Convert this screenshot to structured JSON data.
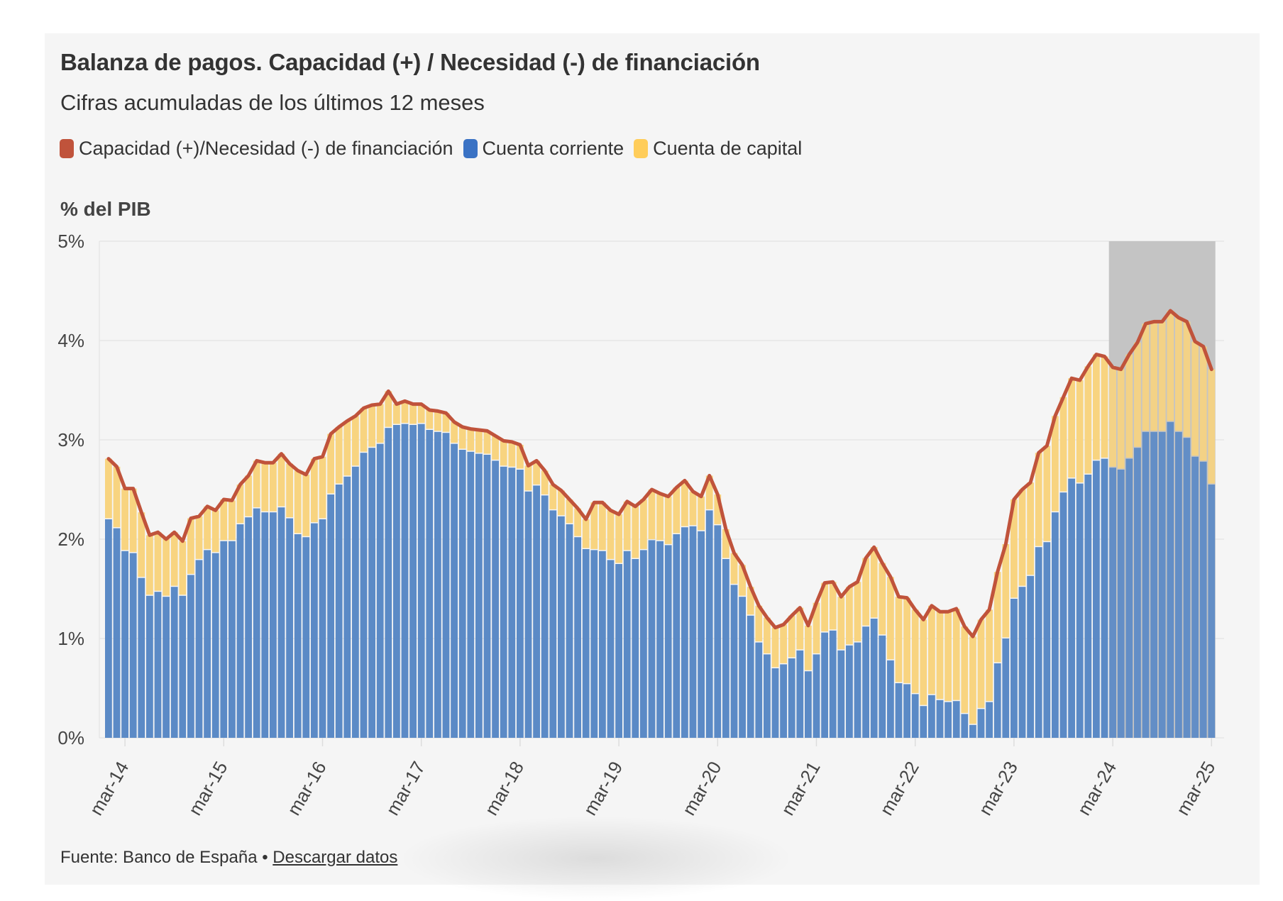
{
  "card": {
    "title": "Balanza de pagos. Capacidad (+) / Necesidad (-) de financiación",
    "subtitle": "Cifras acumuladas de los últimos 12 meses",
    "y_unit_label": "% del PIB",
    "footer": {
      "source_text": "Fuente: Banco de España • ",
      "download_link": "Descargar datos"
    }
  },
  "colors": {
    "total_line": "#c0533b",
    "current_account": "#5b8ac6",
    "capital_account": "#f8d480",
    "legend_current_account": "#3a72c4",
    "legend_capital_account": "#ffcd5a",
    "highlight_band": "#c4c4c4",
    "gridline": "#e6e6e6"
  },
  "chart_data": {
    "type": "bar",
    "stacked": true,
    "title": "Balanza de pagos. Capacidad (+) / Necesidad (-) de financiación",
    "subtitle": "Cifras acumuladas de los últimos 12 meses",
    "xlabel": "",
    "ylabel": "% del PIB",
    "ylim": [
      0,
      5
    ],
    "yticks": [
      0,
      1,
      2,
      3,
      4,
      5
    ],
    "ytick_labels": [
      "0%",
      "1%",
      "2%",
      "3%",
      "4%",
      "5%"
    ],
    "grid": true,
    "legend_position": "top-left",
    "start_month": "ene-14",
    "end_month": "mar-25",
    "xtick_labels": [
      "mar-14",
      "mar-15",
      "mar-16",
      "mar-17",
      "mar-18",
      "mar-19",
      "mar-20",
      "mar-21",
      "mar-22",
      "mar-23",
      "mar-24",
      "mar-25"
    ],
    "xtick_label_rotation": "-60deg",
    "highlight_range": {
      "from": "mar-24",
      "to": "mar-25"
    },
    "legend": [
      {
        "name": "Capacidad (+)/Necesidad (-) de financiación",
        "kind": "line"
      },
      {
        "name": "Cuenta corriente",
        "kind": "bar"
      },
      {
        "name": "Cuenta de capital",
        "kind": "bar"
      }
    ],
    "series": [
      {
        "name": "Cuenta corriente",
        "type": "bar",
        "values": [
          2.2,
          2.11,
          1.88,
          1.86,
          1.61,
          1.43,
          1.47,
          1.42,
          1.52,
          1.43,
          1.64,
          1.79,
          1.89,
          1.86,
          1.98,
          1.98,
          2.15,
          2.22,
          2.31,
          2.27,
          2.27,
          2.32,
          2.21,
          2.05,
          2.02,
          2.16,
          2.2,
          2.45,
          2.55,
          2.63,
          2.73,
          2.87,
          2.92,
          2.96,
          3.12,
          3.15,
          3.16,
          3.15,
          3.16,
          3.1,
          3.08,
          3.07,
          2.96,
          2.9,
          2.88,
          2.86,
          2.85,
          2.79,
          2.73,
          2.72,
          2.7,
          2.48,
          2.54,
          2.44,
          2.29,
          2.23,
          2.15,
          2.02,
          1.9,
          1.89,
          1.88,
          1.79,
          1.75,
          1.88,
          1.8,
          1.89,
          1.99,
          1.98,
          1.94,
          2.05,
          2.12,
          2.13,
          2.08,
          2.29,
          2.14,
          1.8,
          1.54,
          1.42,
          1.23,
          0.96,
          0.84,
          0.7,
          0.74,
          0.8,
          0.88,
          0.67,
          0.84,
          1.06,
          1.08,
          0.88,
          0.93,
          0.96,
          1.12,
          1.2,
          1.03,
          0.78,
          0.55,
          0.54,
          0.44,
          0.32,
          0.43,
          0.38,
          0.36,
          0.37,
          0.24,
          0.13,
          0.29,
          0.36,
          0.75,
          1.0,
          1.4,
          1.52,
          1.63,
          1.92,
          1.97,
          2.27,
          2.47,
          2.61,
          2.56,
          2.65,
          2.79,
          2.81,
          2.72,
          2.7,
          2.81,
          2.92,
          3.08,
          3.08,
          3.08,
          3.18,
          3.08,
          3.02,
          2.83,
          2.78,
          2.55
        ]
      },
      {
        "name": "Cuenta de capital",
        "type": "bar",
        "values": [
          0.61,
          0.62,
          0.63,
          0.65,
          0.66,
          0.61,
          0.6,
          0.58,
          0.55,
          0.55,
          0.57,
          0.44,
          0.44,
          0.43,
          0.42,
          0.41,
          0.4,
          0.42,
          0.48,
          0.5,
          0.5,
          0.54,
          0.55,
          0.64,
          0.63,
          0.65,
          0.63,
          0.61,
          0.58,
          0.56,
          0.51,
          0.45,
          0.43,
          0.4,
          0.37,
          0.21,
          0.23,
          0.21,
          0.2,
          0.2,
          0.21,
          0.2,
          0.22,
          0.23,
          0.23,
          0.24,
          0.24,
          0.25,
          0.26,
          0.26,
          0.25,
          0.26,
          0.25,
          0.25,
          0.26,
          0.26,
          0.25,
          0.29,
          0.3,
          0.48,
          0.49,
          0.5,
          0.5,
          0.5,
          0.53,
          0.51,
          0.51,
          0.48,
          0.49,
          0.47,
          0.47,
          0.35,
          0.35,
          0.35,
          0.31,
          0.3,
          0.32,
          0.32,
          0.29,
          0.37,
          0.37,
          0.41,
          0.4,
          0.43,
          0.43,
          0.46,
          0.52,
          0.5,
          0.49,
          0.54,
          0.59,
          0.61,
          0.69,
          0.72,
          0.73,
          0.84,
          0.87,
          0.87,
          0.85,
          0.87,
          0.9,
          0.89,
          0.91,
          0.93,
          0.88,
          0.89,
          0.9,
          0.93,
          0.92,
          0.95,
          1.0,
          0.98,
          0.94,
          0.95,
          0.97,
          0.97,
          0.96,
          1.01,
          1.04,
          1.09,
          1.07,
          1.03,
          1.01,
          1.01,
          1.05,
          1.06,
          1.09,
          1.11,
          1.11,
          1.12,
          1.15,
          1.17,
          1.16,
          1.16,
          1.16
        ]
      },
      {
        "name": "Capacidad (+)/Necesidad (-) de financiación",
        "type": "line",
        "values": [
          2.81,
          2.73,
          2.51,
          2.51,
          2.27,
          2.04,
          2.07,
          2.0,
          2.07,
          1.98,
          2.21,
          2.23,
          2.33,
          2.29,
          2.4,
          2.39,
          2.55,
          2.64,
          2.79,
          2.77,
          2.77,
          2.86,
          2.76,
          2.69,
          2.65,
          2.81,
          2.83,
          3.06,
          3.13,
          3.19,
          3.24,
          3.32,
          3.35,
          3.36,
          3.49,
          3.36,
          3.39,
          3.36,
          3.36,
          3.3,
          3.29,
          3.27,
          3.18,
          3.13,
          3.11,
          3.1,
          3.09,
          3.04,
          2.99,
          2.98,
          2.95,
          2.74,
          2.79,
          2.69,
          2.55,
          2.49,
          2.4,
          2.31,
          2.2,
          2.37,
          2.37,
          2.29,
          2.25,
          2.38,
          2.33,
          2.4,
          2.5,
          2.46,
          2.43,
          2.52,
          2.59,
          2.48,
          2.43,
          2.64,
          2.45,
          2.1,
          1.86,
          1.74,
          1.52,
          1.33,
          1.21,
          1.11,
          1.14,
          1.23,
          1.31,
          1.13,
          1.36,
          1.56,
          1.57,
          1.42,
          1.52,
          1.57,
          1.81,
          1.92,
          1.76,
          1.62,
          1.42,
          1.41,
          1.29,
          1.19,
          1.33,
          1.27,
          1.27,
          1.3,
          1.12,
          1.02,
          1.19,
          1.29,
          1.67,
          1.95,
          2.4,
          2.5,
          2.57,
          2.87,
          2.94,
          3.24,
          3.43,
          3.62,
          3.6,
          3.74,
          3.86,
          3.84,
          3.73,
          3.71,
          3.86,
          3.98,
          4.17,
          4.19,
          4.19,
          4.3,
          4.23,
          4.19,
          3.99,
          3.94,
          3.71
        ]
      }
    ]
  }
}
